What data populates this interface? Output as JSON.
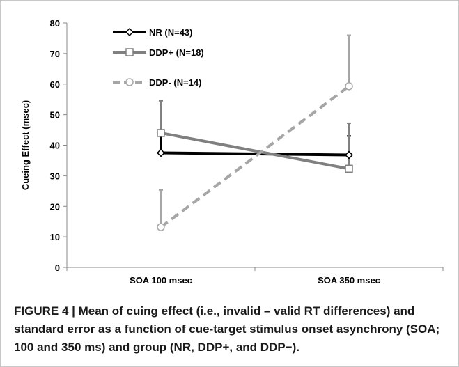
{
  "chart_data": {
    "type": "line",
    "categories": [
      "SOA 100 msec",
      "SOA 350 msec"
    ],
    "ylabel": "Cueing Effect (msec)",
    "ylim": [
      0,
      80
    ],
    "yticks": [
      0,
      10,
      20,
      30,
      40,
      50,
      60,
      70,
      80
    ],
    "grid": false,
    "legend_position": "top-left",
    "series": [
      {
        "name": "NR (N=43)",
        "values": [
          37.5,
          36.8
        ],
        "error_upper": [
          43,
          43
        ],
        "color": "#000000",
        "dash": "solid",
        "marker": "diamond"
      },
      {
        "name": "DDP+ (N=18)",
        "values": [
          44,
          32.3
        ],
        "error_upper": [
          54.5,
          47.2
        ],
        "color": "#808080",
        "dash": "solid",
        "marker": "square"
      },
      {
        "name": "DDP- (N=14)",
        "values": [
          13.2,
          59.3
        ],
        "error_upper": [
          25.3,
          76
        ],
        "color": "#a6a6a6",
        "dash": "dashed",
        "marker": "circle"
      }
    ]
  },
  "caption": "FIGURE 4 | Mean of cuing effect (i.e., invalid – valid RT differences) and standard error as a function of cue-target stimulus onset asynchrony (SOA; 100 and 350 ms) and group (NR, DDP+, and DDP−)."
}
